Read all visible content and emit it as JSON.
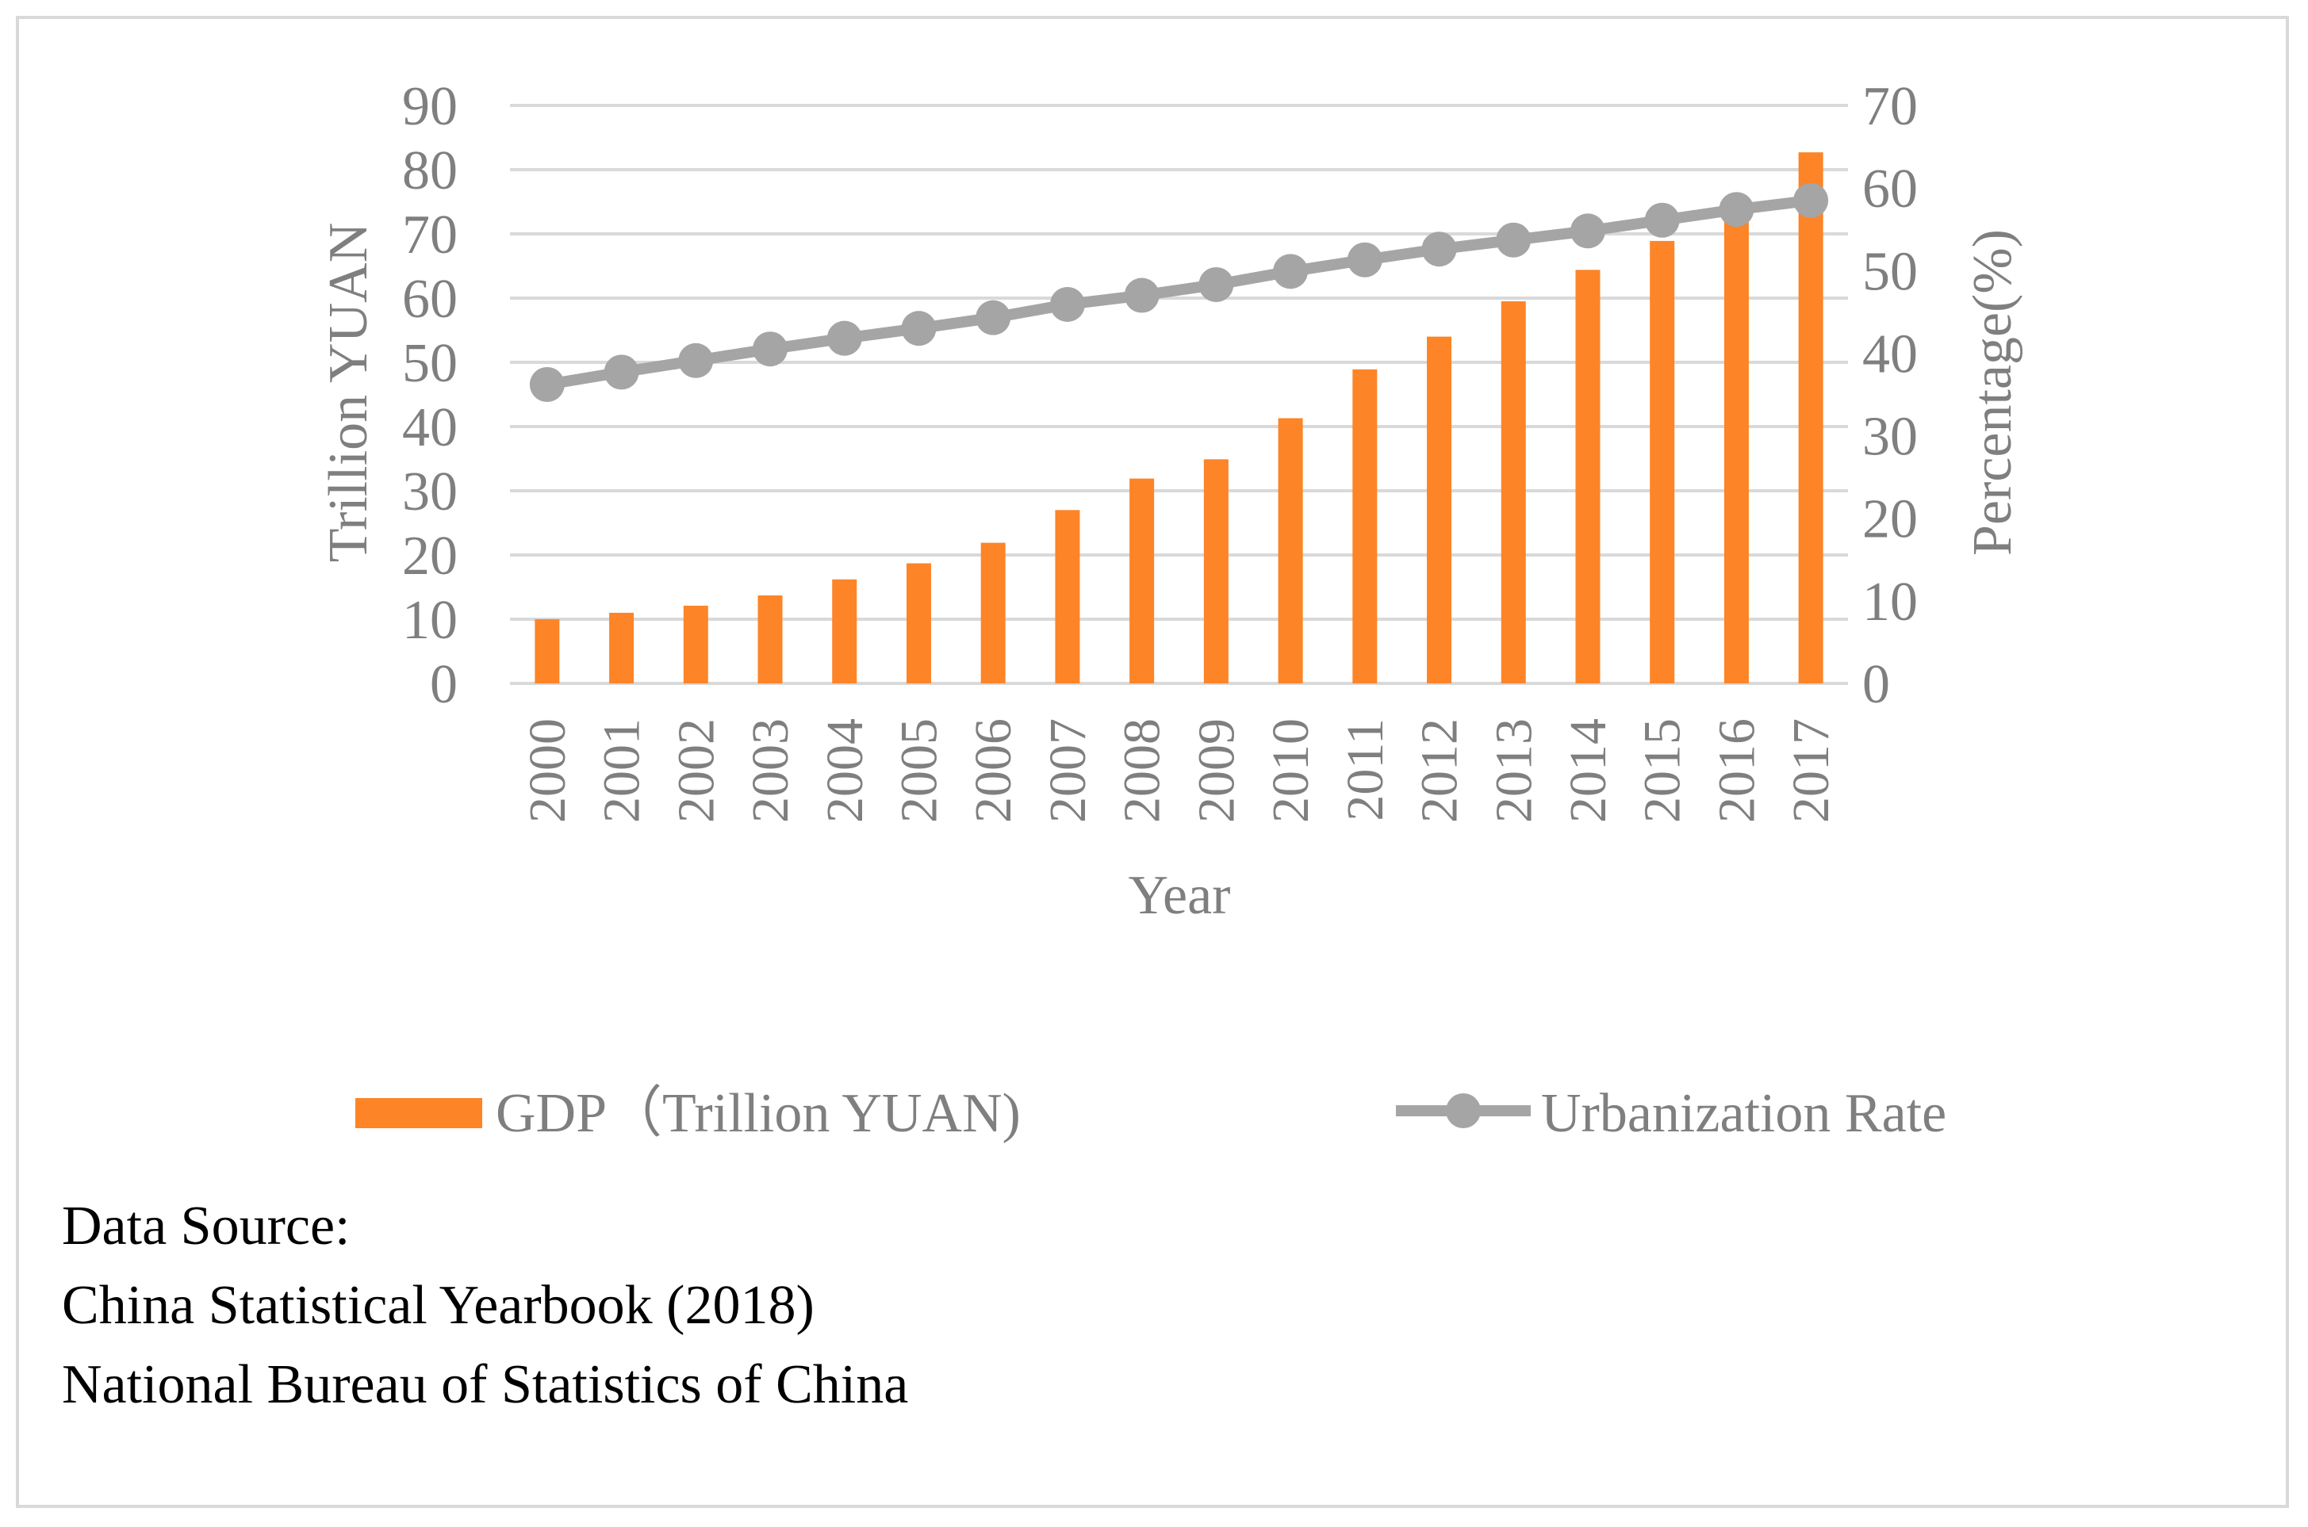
{
  "chart_data": {
    "type": "bar",
    "categories": [
      "2000",
      "2001",
      "2002",
      "2003",
      "2004",
      "2005",
      "2006",
      "2007",
      "2008",
      "2009",
      "2010",
      "2011",
      "2012",
      "2013",
      "2014",
      "2015",
      "2016",
      "2017"
    ],
    "series": [
      {
        "name": "GDP（Trillion YUAN)",
        "type": "bar",
        "axis": "left",
        "color": "#fd8427",
        "values": [
          10.0,
          11.0,
          12.1,
          13.7,
          16.2,
          18.7,
          21.9,
          27.0,
          31.9,
          34.9,
          41.3,
          48.9,
          54.0,
          59.5,
          64.4,
          68.9,
          74.6,
          82.7
        ]
      },
      {
        "name": "Urbanization Rate",
        "type": "line",
        "axis": "right",
        "color": "#a5a5a5",
        "values": [
          36.2,
          37.7,
          39.1,
          40.5,
          41.8,
          43.0,
          44.3,
          45.9,
          47.0,
          48.3,
          49.9,
          51.3,
          52.6,
          53.7,
          54.8,
          56.1,
          57.4,
          58.5
        ]
      }
    ],
    "xlabel": "Year",
    "ylabel": "Trillion YUAN",
    "y2label": "Percentage(%)",
    "ylim": [
      0,
      90
    ],
    "y2lim": [
      0,
      70
    ],
    "yticks": [
      0,
      10,
      20,
      30,
      40,
      50,
      60,
      70,
      80,
      90
    ],
    "y2ticks": [
      0,
      10,
      20,
      30,
      40,
      50,
      60,
      70
    ],
    "grid": true,
    "legend_position": "bottom"
  },
  "source": {
    "line1": "Data Source:",
    "line2": "China Statistical Yearbook (2018)",
    "line3": "National Bureau of Statistics of China"
  }
}
